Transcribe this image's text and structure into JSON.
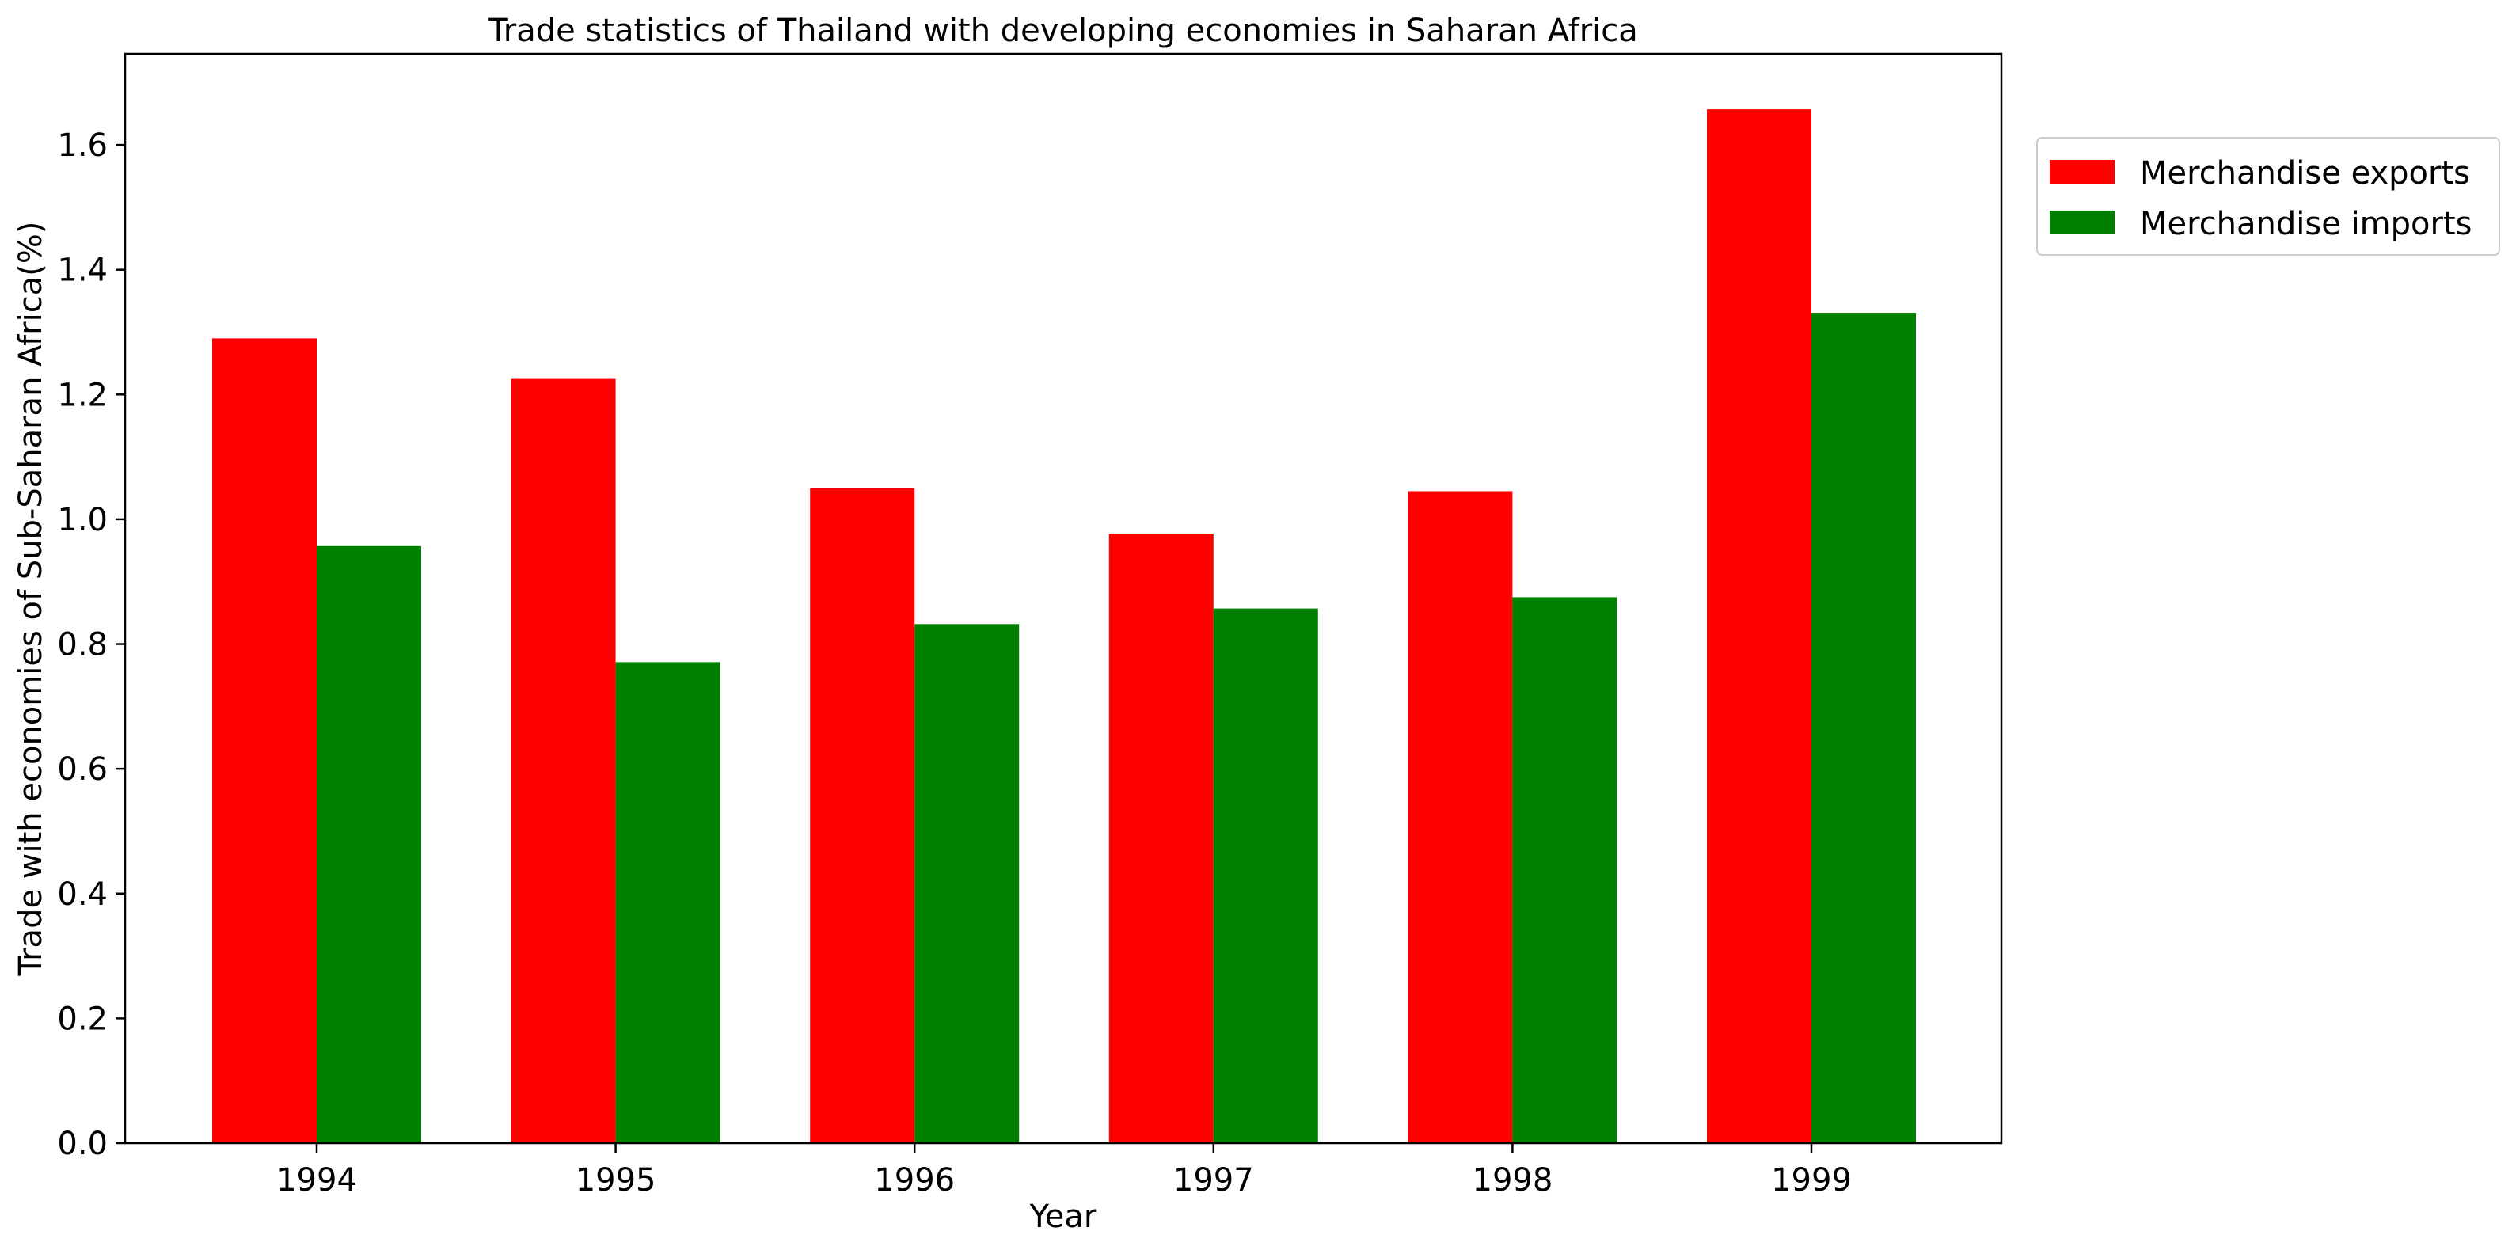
{
  "chart_data": {
    "type": "bar",
    "title": "Trade statistics of Thailand with developing economies in Saharan Africa",
    "xlabel": "Year",
    "ylabel": "Trade with economies of Sub-Saharan Africa(%)",
    "categories": [
      "1994",
      "1995",
      "1996",
      "1997",
      "1998",
      "1999"
    ],
    "series": [
      {
        "name": "Merchandise exports",
        "color": "#ff0000",
        "values": [
          1.29,
          1.225,
          1.05,
          0.977,
          1.045,
          1.657
        ]
      },
      {
        "name": "Merchandise imports",
        "color": "#008000",
        "values": [
          0.957,
          0.771,
          0.832,
          0.857,
          0.875,
          1.331
        ]
      }
    ],
    "ylim": [
      0,
      1.746
    ],
    "yticks": [
      0.0,
      0.2,
      0.4,
      0.6,
      0.8,
      1.0,
      1.2,
      1.4,
      1.6
    ],
    "ytick_labels": [
      "0.0",
      "0.2",
      "0.4",
      "0.6",
      "0.8",
      "1.0",
      "1.2",
      "1.4",
      "1.6"
    ],
    "grid": false,
    "legend_position": "outside-top-right"
  }
}
